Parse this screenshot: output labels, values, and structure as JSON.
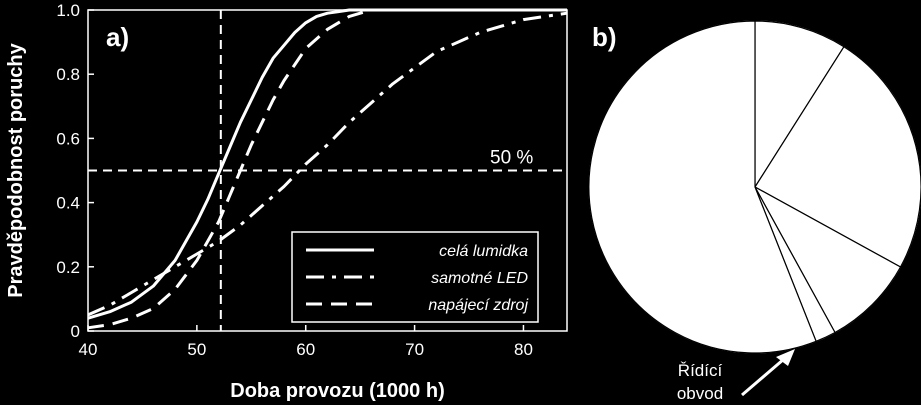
{
  "chart_data": [
    {
      "type": "line",
      "panel_label": "a)",
      "xlabel": "Doba provozu (1000 h)",
      "ylabel": "Pravděpodobnost poruchy",
      "xlim": [
        40,
        84
      ],
      "ylim": [
        0,
        1.0
      ],
      "xticks": [
        40,
        50,
        60,
        70,
        80
      ],
      "yticks": [
        0,
        0.2,
        0.4,
        0.6,
        0.8,
        1.0
      ],
      "ytick_labels": [
        "0",
        "0.2",
        "0.4",
        "0.6",
        "0.8",
        "1.0"
      ],
      "grid": false,
      "legend_position": "bottom-right",
      "reference_lines": {
        "x": 52.2,
        "y": 0.5,
        "label": "50 %"
      },
      "series": [
        {
          "name": "celá lumidka",
          "style": "solid",
          "x": [
            40,
            42,
            44,
            46,
            48,
            50,
            51,
            52,
            53,
            54,
            55,
            56,
            57,
            58,
            59,
            60,
            61,
            62,
            63,
            64,
            65,
            66,
            68,
            70,
            75,
            84
          ],
          "y": [
            0.04,
            0.06,
            0.09,
            0.14,
            0.22,
            0.34,
            0.41,
            0.49,
            0.57,
            0.65,
            0.72,
            0.79,
            0.85,
            0.89,
            0.93,
            0.96,
            0.98,
            0.99,
            0.995,
            1.0,
            1.0,
            1.0,
            1.0,
            1.0,
            1.0,
            1.0
          ]
        },
        {
          "name": "samotné LED",
          "style": "dashdot",
          "x": [
            40,
            42,
            44,
            46,
            48,
            50,
            52,
            54,
            56,
            58,
            60,
            62,
            64,
            66,
            68,
            70,
            72,
            74,
            76,
            78,
            80,
            82,
            84
          ],
          "y": [
            0.05,
            0.08,
            0.12,
            0.16,
            0.2,
            0.24,
            0.28,
            0.33,
            0.39,
            0.45,
            0.52,
            0.58,
            0.65,
            0.71,
            0.77,
            0.82,
            0.87,
            0.9,
            0.93,
            0.95,
            0.97,
            0.98,
            0.99
          ]
        },
        {
          "name": "napájecí zdroj",
          "style": "dashed",
          "x": [
            40,
            42,
            44,
            46,
            48,
            50,
            51,
            52,
            53,
            54,
            55,
            56,
            57,
            58,
            59,
            60,
            61,
            62,
            63,
            64,
            65,
            66,
            68,
            70,
            75,
            84
          ],
          "y": [
            0.01,
            0.02,
            0.04,
            0.07,
            0.13,
            0.22,
            0.28,
            0.34,
            0.42,
            0.5,
            0.58,
            0.65,
            0.72,
            0.78,
            0.83,
            0.88,
            0.91,
            0.94,
            0.96,
            0.98,
            0.99,
            1.0,
            1.0,
            1.0,
            1.0,
            1.0
          ]
        }
      ]
    },
    {
      "type": "pie",
      "panel_label": "b)",
      "slices": [
        {
          "label": "",
          "value": 9
        },
        {
          "label": "",
          "value": 24
        },
        {
          "label": "",
          "value": 9
        },
        {
          "label": "Řídící obvod",
          "value": 2
        },
        {
          "label": "",
          "value": 56
        }
      ],
      "annotation_lines": [
        "Řídící",
        "obvod"
      ]
    }
  ]
}
